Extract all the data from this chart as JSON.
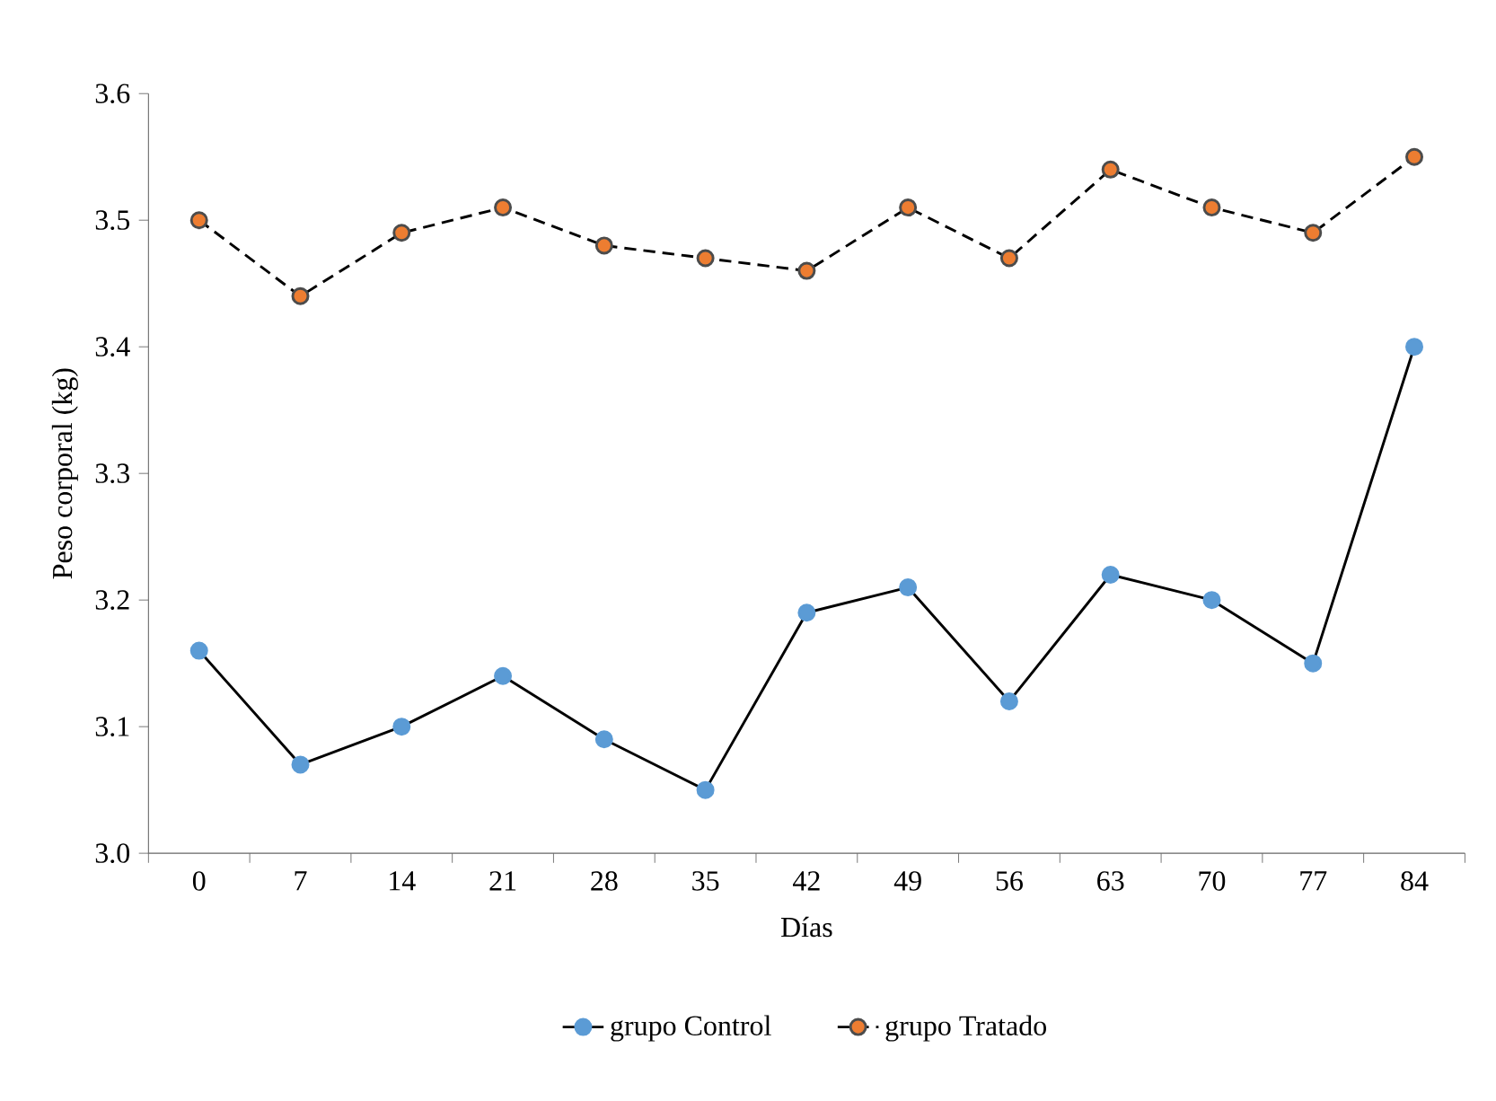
{
  "chart_data": {
    "type": "line",
    "xlabel": "Días",
    "ylabel": "Peso corporal (kg)",
    "categories": [
      "0",
      "7",
      "14",
      "21",
      "28",
      "35",
      "42",
      "49",
      "56",
      "63",
      "70",
      "77",
      "84"
    ],
    "series": [
      {
        "name": "grupo Control",
        "color": "#5b9bd5",
        "line_style": "solid",
        "values": [
          3.16,
          3.07,
          3.1,
          3.14,
          3.09,
          3.05,
          3.19,
          3.21,
          3.12,
          3.22,
          3.2,
          3.15,
          3.4
        ]
      },
      {
        "name": "grupo Tratado",
        "color": "#ed7d31",
        "line_style": "dashed",
        "values": [
          3.5,
          3.44,
          3.49,
          3.51,
          3.48,
          3.47,
          3.46,
          3.51,
          3.47,
          3.54,
          3.51,
          3.49,
          3.55
        ]
      }
    ],
    "ylim": [
      3.0,
      3.6
    ],
    "yticks": [
      {
        "value": 3.0,
        "label": "3.0"
      },
      {
        "value": 3.1,
        "label": "3.1"
      },
      {
        "value": 3.2,
        "label": "3.2"
      },
      {
        "value": 3.3,
        "label": "3.3"
      },
      {
        "value": 3.4,
        "label": "3.4"
      },
      {
        "value": 3.5,
        "label": "3.5"
      },
      {
        "value": 3.6,
        "label": "3.6"
      }
    ],
    "marker": "circle",
    "grid": false,
    "legend": "bottom"
  }
}
